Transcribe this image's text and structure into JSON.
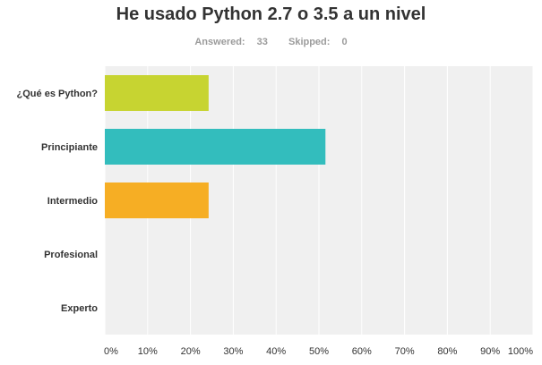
{
  "survey": {
    "answered_label": "Answered:",
    "answered_count": "33",
    "skipped_label": "Skipped:",
    "skipped_count": "0"
  },
  "chart_data": {
    "type": "bar",
    "orientation": "horizontal",
    "title": "He usado Python 2.7 o 3.5 a un nivel",
    "categories": [
      "¿Qué es Python?",
      "Principiante",
      "Intermedio",
      "Profesional",
      "Experto"
    ],
    "values": [
      24.24,
      51.52,
      24.24,
      0,
      0
    ],
    "unit": "%",
    "colors": [
      "#c7d431",
      "#33bdbd",
      "#f6ae24",
      "#d25f90",
      "#9b5ea6"
    ],
    "xlim": [
      0,
      100
    ],
    "xticks": [
      "0%",
      "10%",
      "20%",
      "30%",
      "40%",
      "50%",
      "60%",
      "70%",
      "80%",
      "90%",
      "100%"
    ],
    "grid": true,
    "plot_background": "#f0f0f0",
    "grid_color": "#ffffff"
  }
}
